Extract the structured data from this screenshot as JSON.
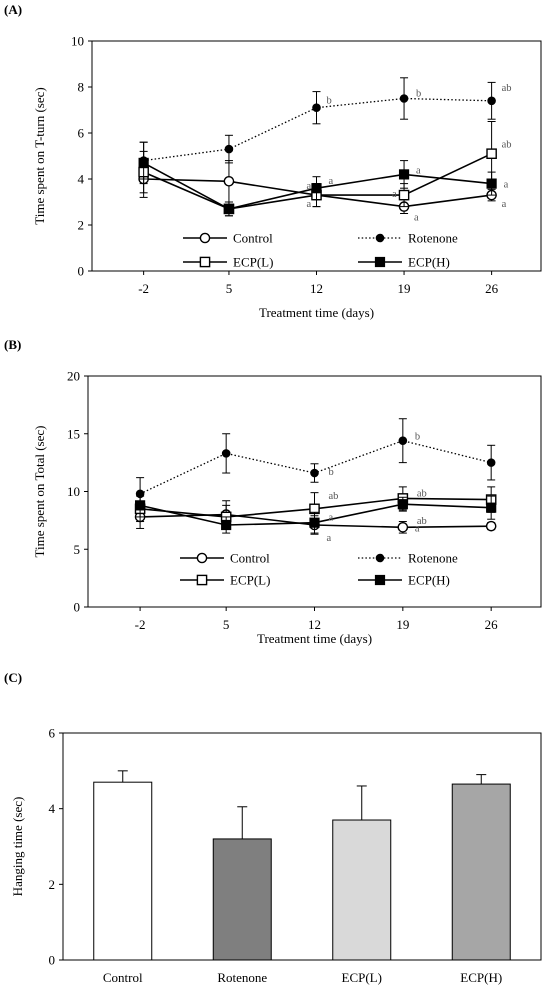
{
  "chart_data": [
    {
      "type": "line",
      "panel_label": "(A)",
      "xlabel": "Treatment time (days)",
      "ylabel": "Time spent on T-turn (sec)",
      "categories": [
        "-2",
        "5",
        "12",
        "19",
        "26"
      ],
      "ylim": [
        0,
        10
      ],
      "yticks": [
        "0",
        "2",
        "4",
        "6",
        "8",
        "10"
      ],
      "legend_position": "inside-bottom",
      "series": [
        {
          "name": "Control",
          "marker": "open-circle",
          "line": "solid",
          "values": [
            4.0,
            3.9,
            3.3,
            2.8,
            3.3
          ],
          "errors": [
            0.8,
            0.9,
            0.5,
            0.3,
            0.25
          ],
          "labels": [
            "",
            "",
            "a",
            "a",
            "a"
          ]
        },
        {
          "name": "Rotenone",
          "marker": "filled-circle",
          "line": "dotted",
          "values": [
            4.8,
            5.3,
            7.1,
            7.5,
            7.4
          ],
          "errors": [
            0.8,
            0.6,
            0.7,
            0.9,
            0.8
          ],
          "labels": [
            "",
            "",
            "b",
            "b",
            "ab"
          ]
        },
        {
          "name": "ECP(L)",
          "marker": "open-square",
          "line": "solid",
          "values": [
            4.3,
            2.7,
            3.3,
            3.3,
            5.1
          ],
          "errors": [
            0.9,
            0.3,
            0.5,
            0.5,
            1.4
          ],
          "labels": [
            "",
            "",
            "a",
            "a",
            "ab"
          ]
        },
        {
          "name": "ECP(H)",
          "marker": "filled-square",
          "line": "solid",
          "values": [
            4.7,
            2.7,
            3.6,
            4.2,
            3.8
          ],
          "errors": [
            0.9,
            0.3,
            0.5,
            0.6,
            0.5
          ],
          "labels": [
            "",
            "",
            "a",
            "a",
            "a"
          ]
        }
      ]
    },
    {
      "type": "line",
      "panel_label": "(B)",
      "xlabel": "Treatment time (days)",
      "ylabel": "Time spent on Total (sec)",
      "categories": [
        "-2",
        "5",
        "12",
        "19",
        "26"
      ],
      "ylim": [
        0,
        20
      ],
      "yticks": [
        "0",
        "5",
        "10",
        "15",
        "20"
      ],
      "legend_position": "inside-bottom",
      "series": [
        {
          "name": "Control",
          "marker": "open-circle",
          "line": "solid",
          "values": [
            7.8,
            8.0,
            7.1,
            6.9,
            7.0
          ],
          "errors": [
            1.0,
            1.2,
            0.8,
            0.5,
            0.3
          ],
          "labels": [
            "",
            "",
            "a",
            "a",
            ""
          ]
        },
        {
          "name": "Rotenone",
          "marker": "filled-circle",
          "line": "dotted",
          "values": [
            9.8,
            13.3,
            11.6,
            14.4,
            12.5
          ],
          "errors": [
            1.4,
            1.7,
            0.8,
            1.9,
            1.5
          ],
          "labels": [
            "",
            "",
            "b",
            "b",
            ""
          ]
        },
        {
          "name": "ECP(L)",
          "marker": "open-square",
          "line": "solid",
          "values": [
            8.5,
            7.8,
            8.5,
            9.4,
            9.3
          ],
          "errors": [
            1.1,
            1.0,
            1.4,
            1.0,
            1.1
          ],
          "labels": [
            "",
            "",
            "ab",
            "ab",
            ""
          ]
        },
        {
          "name": "ECP(H)",
          "marker": "filled-square",
          "line": "solid",
          "values": [
            8.8,
            7.1,
            7.3,
            8.9,
            8.6
          ],
          "errors": [
            1.0,
            0.7,
            0.9,
            0.6,
            1.0
          ],
          "labels": [
            "",
            "",
            "a",
            "ab",
            ""
          ]
        }
      ]
    },
    {
      "type": "bar",
      "panel_label": "(C)",
      "xlabel": "",
      "ylabel": "Hanging time (sec)",
      "categories": [
        "Control",
        "Rotenone",
        "ECP(L)",
        "ECP(H)"
      ],
      "values": [
        4.7,
        3.2,
        3.7,
        4.65
      ],
      "errors": [
        0.3,
        0.85,
        0.9,
        0.25
      ],
      "bar_colors": [
        "#ffffff",
        "#7f7f7f",
        "#d9d9d9",
        "#a6a6a6"
      ],
      "ylim": [
        0,
        6
      ],
      "yticks": [
        "0",
        "2",
        "4",
        "6"
      ]
    }
  ]
}
